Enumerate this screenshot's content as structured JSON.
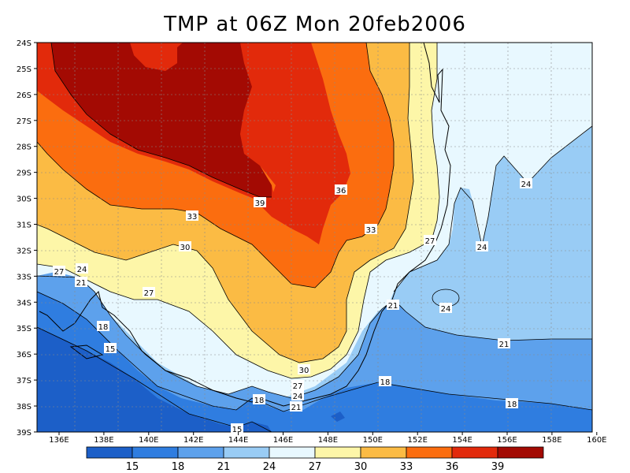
{
  "title": "TMP at 06Z Mon 20feb2006",
  "lat_labels": [
    "24S",
    "25S",
    "26S",
    "27S",
    "28S",
    "29S",
    "30S",
    "31S",
    "32S",
    "33S",
    "34S",
    "35S",
    "36S",
    "37S",
    "38S",
    "39S"
  ],
  "lon_labels": [
    "136E",
    "138E",
    "140E",
    "142E",
    "144E",
    "146E",
    "148E",
    "150E",
    "152E",
    "154E",
    "156E",
    "158E",
    "160E"
  ],
  "colorbar": {
    "labels": [
      "15",
      "18",
      "21",
      "24",
      "27",
      "30",
      "33",
      "36",
      "39"
    ],
    "colors": [
      "#1c5fc8",
      "#2f7de0",
      "#5da1ec",
      "#99ccf5",
      "#e8f8ff",
      "#fdf6a8",
      "#fbbb44",
      "#fb6d0f",
      "#e22a0b",
      "#a30a03"
    ]
  },
  "contour_labels": [
    {
      "text": "39"
    },
    {
      "text": "36"
    },
    {
      "text": "33"
    },
    {
      "text": "33"
    },
    {
      "text": "30"
    },
    {
      "text": "27"
    },
    {
      "text": "27"
    },
    {
      "text": "24"
    },
    {
      "text": "24"
    },
    {
      "text": "24"
    },
    {
      "text": "24"
    },
    {
      "text": "21"
    },
    {
      "text": "21"
    },
    {
      "text": "21"
    },
    {
      "text": "18"
    },
    {
      "text": "18"
    },
    {
      "text": "18"
    },
    {
      "text": "18"
    },
    {
      "text": "15"
    },
    {
      "text": "15"
    },
    {
      "text": "27"
    },
    {
      "text": "30"
    },
    {
      "text": "24"
    },
    {
      "text": "21"
    },
    {
      "text": "27"
    }
  ]
}
